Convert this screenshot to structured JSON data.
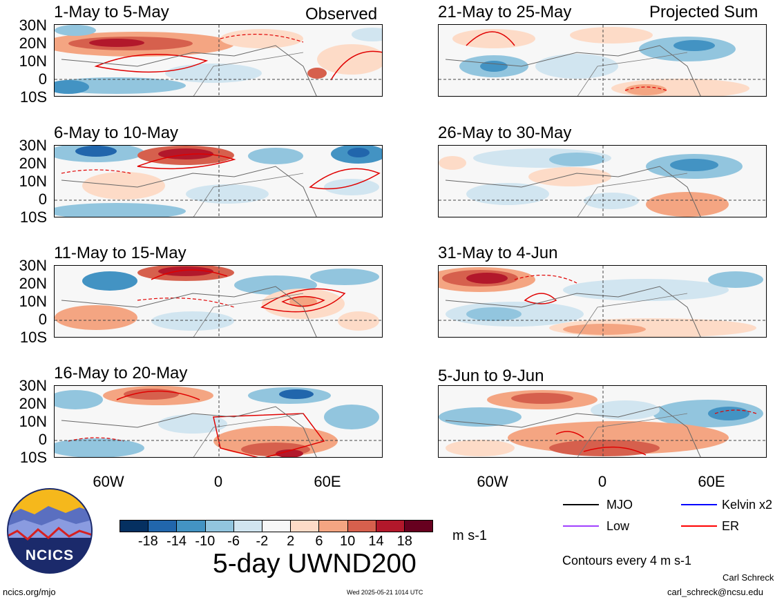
{
  "panels": [
    {
      "title": "1-May to 5-May",
      "label": "Observed",
      "col": 0,
      "row": 0
    },
    {
      "title": "6-May to 10-May",
      "label": "",
      "col": 0,
      "row": 1
    },
    {
      "title": "11-May to 15-May",
      "label": "",
      "col": 0,
      "row": 2
    },
    {
      "title": "16-May to 20-May",
      "label": "",
      "col": 0,
      "row": 3
    },
    {
      "title": "21-May to 25-May",
      "label": "Projected Sum",
      "col": 1,
      "row": 0
    },
    {
      "title": "26-May to 30-May",
      "label": "",
      "col": 1,
      "row": 1
    },
    {
      "title": "31-May to 4-Jun",
      "label": "",
      "col": 1,
      "row": 2
    },
    {
      "title": "5-Jun to 9-Jun",
      "label": "",
      "col": 1,
      "row": 3
    }
  ],
  "lat_labels": [
    "30N",
    "20N",
    "10N",
    "0",
    "10S"
  ],
  "lon_labels": [
    "60W",
    "0",
    "60E"
  ],
  "colorbar": {
    "colors": [
      "#053061",
      "#2166ac",
      "#4393c3",
      "#92c5de",
      "#d1e5f0",
      "#f7f7f7",
      "#fddbc7",
      "#f4a582",
      "#d6604d",
      "#b2182b",
      "#67001f"
    ],
    "ticks": [
      "-18",
      "-14",
      "-10",
      "-6",
      "-2",
      "2",
      "6",
      "10",
      "14",
      "18"
    ],
    "unit": "m s-1"
  },
  "legend": {
    "items": [
      {
        "label": "MJO",
        "color": "#000000"
      },
      {
        "label": "Kelvin x2",
        "color": "#0000ff"
      },
      {
        "label": "Low",
        "color": "#a040ff"
      },
      {
        "label": "ER",
        "color": "#ff0000"
      }
    ],
    "contour_note": "Contours every 4 m s-1"
  },
  "footer": {
    "main_title": "5-day UWND200",
    "logo_text": "NCICS",
    "url": "ncics.org/mjo",
    "timestamp": "Wed 2025-05-21 1014 UTC",
    "author": "Carl Schreck",
    "email": "carl_schreck@ncsu.edu"
  }
}
